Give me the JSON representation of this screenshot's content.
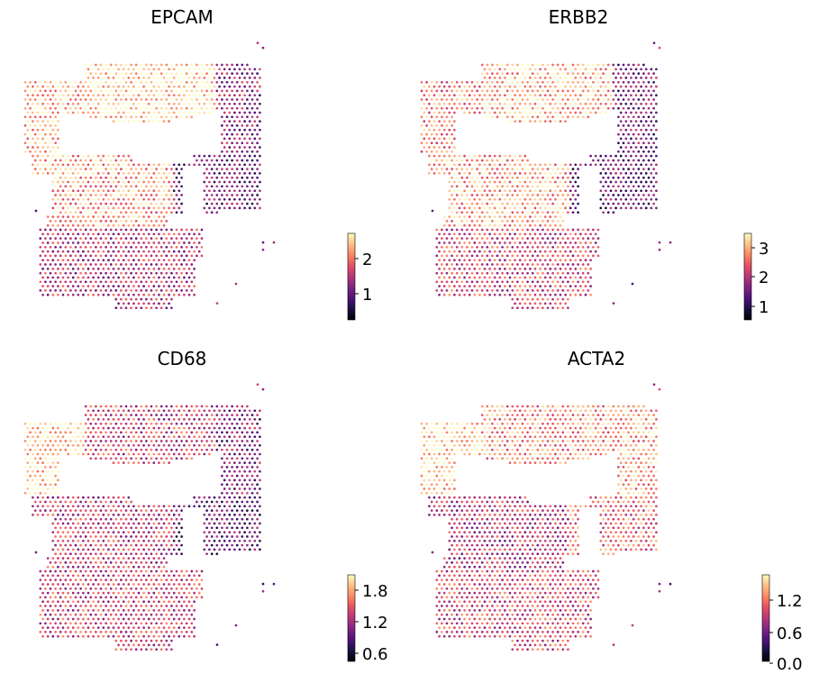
{
  "figure": {
    "panels": [
      {
        "title": "EPCAM",
        "cbar_ticks": [
          "1",
          "2"
        ]
      },
      {
        "title": "ERBB2",
        "cbar_ticks": [
          "1",
          "2",
          "3"
        ]
      },
      {
        "title": "CD68",
        "cbar_ticks": [
          "0.6",
          "1.2",
          "1.8"
        ]
      },
      {
        "title": "ACTA2",
        "cbar_ticks": [
          "0.0",
          "0.6",
          "1.2"
        ]
      }
    ]
  },
  "chart_data": [
    {
      "type": "scatter",
      "title": "EPCAM",
      "colormap": "magma",
      "colorbar": {
        "range": [
          0.2,
          2.6
        ],
        "ticks": [
          1,
          2
        ]
      },
      "expression_regions": [
        {
          "region": "upper-left",
          "level": 2.2
        },
        {
          "region": "upper-band",
          "level": 2.4
        },
        {
          "region": "upper-right",
          "level": 1.2
        },
        {
          "region": "middle-left",
          "level": 2.1
        },
        {
          "region": "middle-right",
          "level": 1.0
        },
        {
          "region": "lower",
          "level": 1.4
        }
      ]
    },
    {
      "type": "scatter",
      "title": "ERBB2",
      "colormap": "magma",
      "colorbar": {
        "range": [
          0.2,
          3.5
        ],
        "ticks": [
          1,
          2,
          3
        ]
      },
      "expression_regions": [
        {
          "region": "upper-left",
          "level": 2.6
        },
        {
          "region": "upper-band",
          "level": 3.0
        },
        {
          "region": "upper-right",
          "level": 1.4
        },
        {
          "region": "middle-left",
          "level": 2.8
        },
        {
          "region": "middle-right",
          "level": 1.2
        },
        {
          "region": "lower",
          "level": 2.1
        }
      ]
    },
    {
      "type": "scatter",
      "title": "CD68",
      "colormap": "magma",
      "colorbar": {
        "range": [
          0.4,
          2.0
        ],
        "ticks": [
          0.6,
          1.2,
          1.8
        ]
      },
      "expression_regions": [
        {
          "region": "upper-left",
          "level": 1.85
        },
        {
          "region": "upper-band",
          "level": 1.3
        },
        {
          "region": "upper-right",
          "level": 1.0
        },
        {
          "region": "middle-left",
          "level": 1.25
        },
        {
          "region": "middle-right",
          "level": 0.9
        },
        {
          "region": "lower",
          "level": 1.3
        }
      ]
    },
    {
      "type": "scatter",
      "title": "ACTA2",
      "colormap": "magma",
      "colorbar": {
        "range": [
          0.0,
          1.6
        ],
        "ticks": [
          0.0,
          0.6,
          1.2
        ]
      },
      "expression_regions": [
        {
          "region": "upper-left",
          "level": 1.45
        },
        {
          "region": "upper-band",
          "level": 1.2
        },
        {
          "region": "upper-right",
          "level": 1.3
        },
        {
          "region": "middle-left",
          "level": 0.8
        },
        {
          "region": "middle-right",
          "level": 1.1
        },
        {
          "region": "lower",
          "level": 0.95
        }
      ]
    }
  ]
}
